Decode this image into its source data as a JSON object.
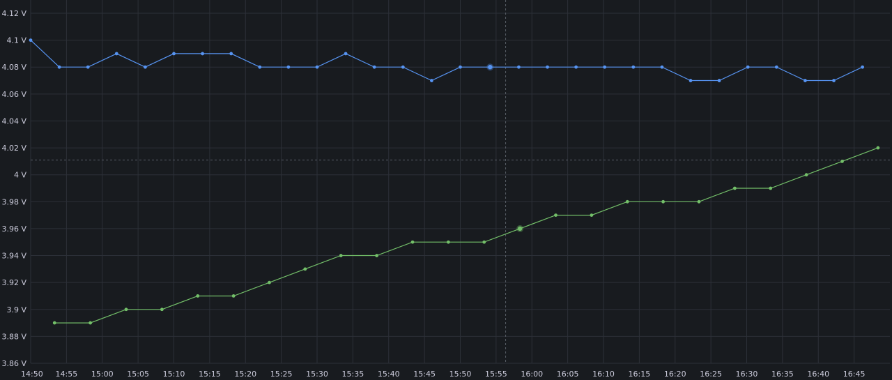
{
  "chart_data": {
    "type": "line",
    "title": "",
    "xlabel": "",
    "ylabel": "",
    "ylim": [
      3.86,
      4.12
    ],
    "y_ticks": [
      3.86,
      3.88,
      3.9,
      3.92,
      3.94,
      3.96,
      3.98,
      4.0,
      4.02,
      4.04,
      4.06,
      4.08,
      4.1,
      4.12
    ],
    "y_tick_labels": [
      "3.86 V",
      "3.88 V",
      "3.9 V",
      "3.92 V",
      "3.94 V",
      "3.96 V",
      "3.98 V",
      "4 V",
      "4.02 V",
      "4.04 V",
      "4.06 V",
      "4.08 V",
      "4.1 V",
      "4.12 V"
    ],
    "xlim": [
      "14:50",
      "16:50"
    ],
    "x_tick_labels": [
      "14:50",
      "14:55",
      "15:00",
      "15:05",
      "15:10",
      "15:15",
      "15:20",
      "15:25",
      "15:30",
      "15:35",
      "15:40",
      "15:45",
      "15:50",
      "15:55",
      "16:00",
      "16:05",
      "16:10",
      "16:15",
      "16:20",
      "16:25",
      "16:30",
      "16:35",
      "16:40",
      "16:45"
    ],
    "grid": true,
    "legend": "none",
    "crosshair": {
      "x": "15:56:20",
      "y": 4.011
    },
    "series": [
      {
        "color": "#5794f2",
        "highlight_x": "15:54:10",
        "points": [
          [
            "14:50:00",
            4.1
          ],
          [
            "14:54:00",
            4.08
          ],
          [
            "14:58:00",
            4.08
          ],
          [
            "15:02:00",
            4.09
          ],
          [
            "15:06:00",
            4.08
          ],
          [
            "15:10:00",
            4.09
          ],
          [
            "15:14:00",
            4.09
          ],
          [
            "15:18:00",
            4.09
          ],
          [
            "15:22:00",
            4.08
          ],
          [
            "15:26:00",
            4.08
          ],
          [
            "15:30:00",
            4.08
          ],
          [
            "15:34:00",
            4.09
          ],
          [
            "15:38:00",
            4.08
          ],
          [
            "15:42:00",
            4.08
          ],
          [
            "15:46:00",
            4.07
          ],
          [
            "15:50:00",
            4.08
          ],
          [
            "15:54:10",
            4.08
          ],
          [
            "15:58:10",
            4.08
          ],
          [
            "16:02:10",
            4.08
          ],
          [
            "16:06:10",
            4.08
          ],
          [
            "16:10:10",
            4.08
          ],
          [
            "16:14:10",
            4.08
          ],
          [
            "16:18:10",
            4.08
          ],
          [
            "16:22:10",
            4.07
          ],
          [
            "16:26:10",
            4.07
          ],
          [
            "16:30:10",
            4.08
          ],
          [
            "16:34:10",
            4.08
          ],
          [
            "16:38:10",
            4.07
          ],
          [
            "16:42:10",
            4.07
          ],
          [
            "16:46:10",
            4.08
          ]
        ]
      },
      {
        "color": "#73bf69",
        "highlight_x": "15:58:20",
        "points": [
          [
            "14:53:20",
            3.89
          ],
          [
            "14:58:20",
            3.89
          ],
          [
            "15:03:20",
            3.9
          ],
          [
            "15:08:20",
            3.9
          ],
          [
            "15:13:20",
            3.91
          ],
          [
            "15:18:20",
            3.91
          ],
          [
            "15:23:20",
            3.92
          ],
          [
            "15:28:20",
            3.93
          ],
          [
            "15:33:20",
            3.94
          ],
          [
            "15:38:20",
            3.94
          ],
          [
            "15:43:20",
            3.95
          ],
          [
            "15:48:20",
            3.95
          ],
          [
            "15:53:20",
            3.95
          ],
          [
            "15:58:20",
            3.96
          ],
          [
            "16:03:20",
            3.97
          ],
          [
            "16:08:20",
            3.97
          ],
          [
            "16:13:20",
            3.98
          ],
          [
            "16:18:20",
            3.98
          ],
          [
            "16:23:20",
            3.98
          ],
          [
            "16:28:20",
            3.99
          ],
          [
            "16:33:20",
            3.99
          ],
          [
            "16:38:20",
            4.0
          ],
          [
            "16:43:20",
            4.01
          ],
          [
            "16:48:20",
            4.02
          ]
        ]
      }
    ]
  }
}
